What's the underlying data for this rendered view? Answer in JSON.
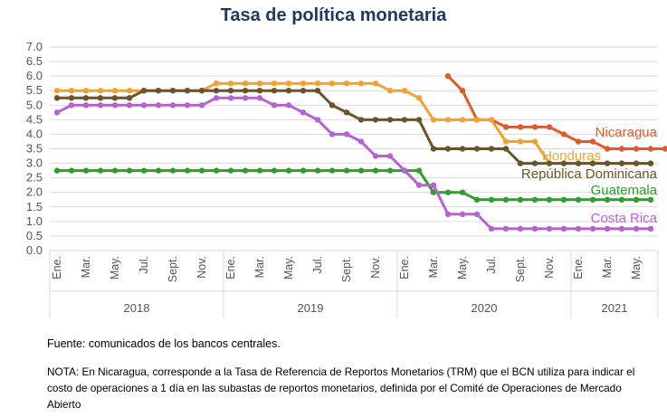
{
  "chart_data": {
    "type": "line",
    "title": "Tasa de política monetaria",
    "ylim": [
      0,
      7
    ],
    "yticks": [
      "0.0",
      "0.5",
      "1.0",
      "1.5",
      "2.0",
      "2.5",
      "3.0",
      "3.5",
      "4.0",
      "4.5",
      "5.0",
      "5.5",
      "6.0",
      "6.5",
      "7.0"
    ],
    "x_tick_labels": [
      "Ene.",
      "Mar.",
      "May.",
      "Jul.",
      "Sept.",
      "Nov.",
      "Ene.",
      "Mar.",
      "May.",
      "Jul.",
      "Sept.",
      "Nov.",
      "Ene.",
      "Mar.",
      "May.",
      "Jul.",
      "Sept.",
      "Nov.",
      "Ene.",
      "Mar.",
      "May."
    ],
    "years": [
      "2018",
      "2019",
      "2020",
      "2021"
    ],
    "grid": true,
    "series": [
      {
        "name": "Nicaragua",
        "color": "#e05a2b",
        "start_index": 27,
        "values": [
          6.0,
          5.5,
          4.5,
          4.5,
          4.25,
          4.25,
          4.25,
          4.25,
          4.0,
          3.75,
          3.75,
          3.5,
          3.5,
          3.5,
          3.5,
          3.5
        ]
      },
      {
        "name": "Honduras",
        "color": "#f2a134",
        "start_index": 0,
        "values": [
          5.5,
          5.5,
          5.5,
          5.5,
          5.5,
          5.5,
          5.5,
          5.5,
          5.5,
          5.5,
          5.5,
          5.75,
          5.75,
          5.75,
          5.75,
          5.75,
          5.75,
          5.75,
          5.75,
          5.75,
          5.75,
          5.75,
          5.75,
          5.5,
          5.5,
          5.25,
          4.5,
          4.5,
          4.5,
          4.5,
          4.5,
          3.75,
          3.75,
          3.75,
          3.0,
          3.0,
          3.0,
          3.0,
          3.0,
          3.0,
          3.0,
          3.0
        ]
      },
      {
        "name": "República Dominicana",
        "color": "#6b5428",
        "start_index": 0,
        "values": [
          5.25,
          5.25,
          5.25,
          5.25,
          5.25,
          5.25,
          5.5,
          5.5,
          5.5,
          5.5,
          5.5,
          5.5,
          5.5,
          5.5,
          5.5,
          5.5,
          5.5,
          5.5,
          5.5,
          5.0,
          4.75,
          4.5,
          4.5,
          4.5,
          4.5,
          4.5,
          3.5,
          3.5,
          3.5,
          3.5,
          3.5,
          3.5,
          3.0,
          3.0,
          3.0,
          3.0,
          3.0,
          3.0,
          3.0,
          3.0,
          3.0,
          3.0
        ]
      },
      {
        "name": "Guatemala",
        "color": "#2e9e2e",
        "start_index": 0,
        "values": [
          2.75,
          2.75,
          2.75,
          2.75,
          2.75,
          2.75,
          2.75,
          2.75,
          2.75,
          2.75,
          2.75,
          2.75,
          2.75,
          2.75,
          2.75,
          2.75,
          2.75,
          2.75,
          2.75,
          2.75,
          2.75,
          2.75,
          2.75,
          2.75,
          2.75,
          2.75,
          2.0,
          2.0,
          2.0,
          1.75,
          1.75,
          1.75,
          1.75,
          1.75,
          1.75,
          1.75,
          1.75,
          1.75,
          1.75,
          1.75,
          1.75,
          1.75
        ]
      },
      {
        "name": "Costa Rica",
        "color": "#b562d4",
        "start_index": 0,
        "values": [
          4.75,
          5.0,
          5.0,
          5.0,
          5.0,
          5.0,
          5.0,
          5.0,
          5.0,
          5.0,
          5.0,
          5.25,
          5.25,
          5.25,
          5.25,
          5.0,
          5.0,
          4.75,
          4.5,
          4.0,
          4.0,
          3.75,
          3.25,
          3.25,
          2.75,
          2.25,
          2.25,
          1.25,
          1.25,
          1.25,
          0.75,
          0.75,
          0.75,
          0.75,
          0.75,
          0.75,
          0.75,
          0.75,
          0.75,
          0.75,
          0.75,
          0.75
        ]
      }
    ]
  },
  "footer": {
    "source": "Fuente: comunicados de los bancos centrales.",
    "note": "NOTA: En Nicaragua, corresponde a la Tasa de Referencia de Reportos Monetarios (TRM) que el BCN utiliza para indicar el costo de operaciones a 1 día en las subastas de reportos monetarios, definida por el Comité de Operaciones de Mercado Abierto"
  }
}
